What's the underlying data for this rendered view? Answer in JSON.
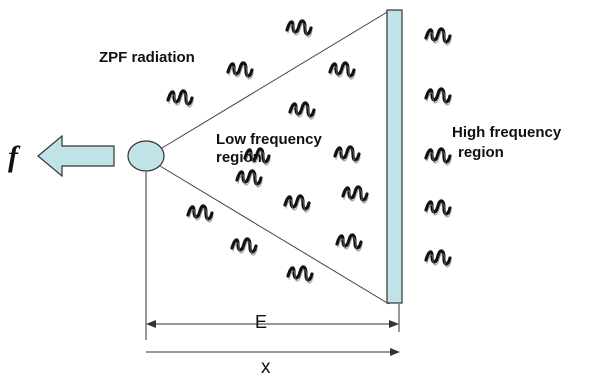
{
  "labels": {
    "force": "f",
    "zpf": "ZPF radiation",
    "low_line1": "Low frequency",
    "low_line2": "region",
    "high_line1": "High frequency",
    "high_line2": "region",
    "e": "E",
    "x": "x"
  },
  "colors": {
    "plate_fill": "#bfe3e6",
    "arrow_fill": "#bfe3e6",
    "ball_fill": "#bfe3e6",
    "outline": "#333333",
    "wave": "#111111"
  },
  "icons": {
    "wave": "squiggle-wave-icon"
  }
}
